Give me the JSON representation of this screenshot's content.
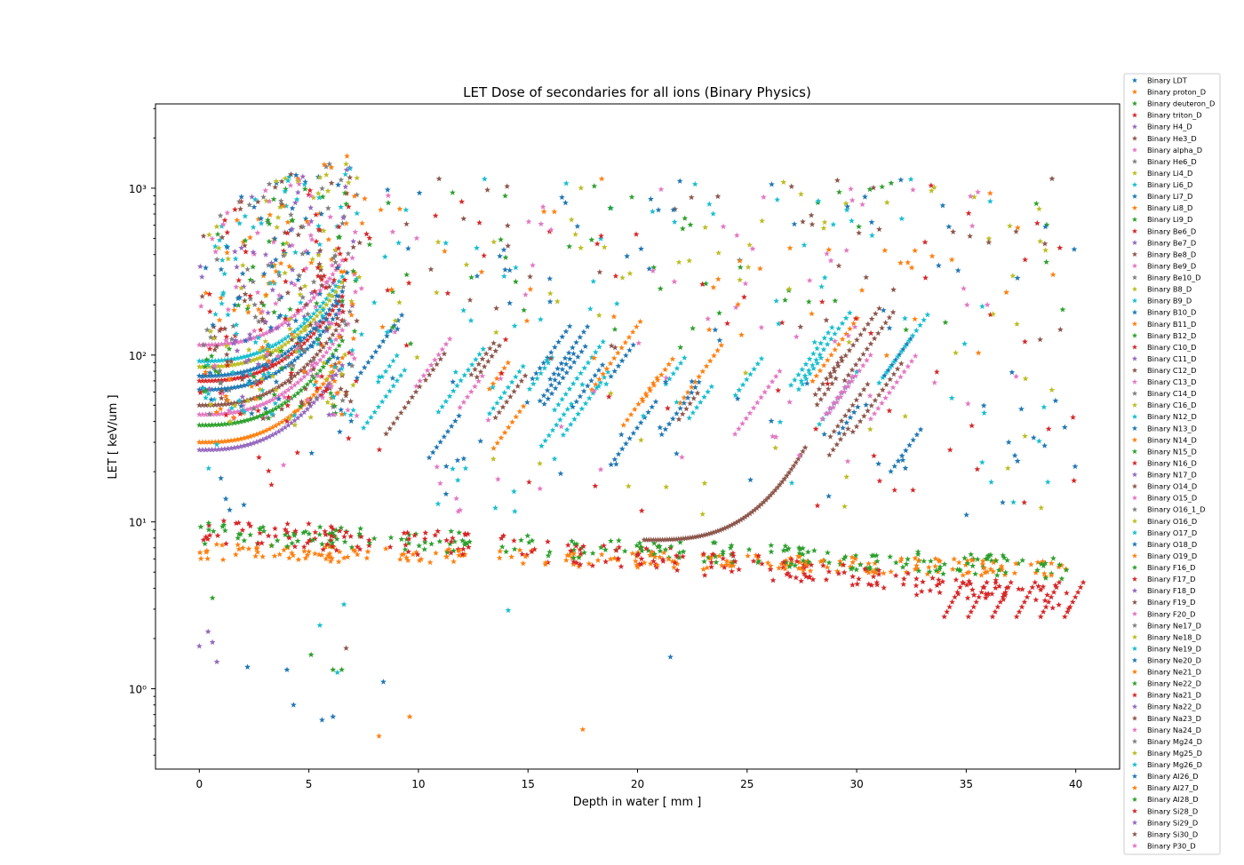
{
  "chart_data": {
    "type": "scatter",
    "marker": "star",
    "title": "LET Dose of secondaries for all ions (Binary Physics)",
    "xlabel": "Depth in water [ mm ]",
    "ylabel": "LET [ keV/um ]",
    "xlim": [
      -2,
      42
    ],
    "ylim": [
      0.33,
      3200
    ],
    "yscale": "log",
    "xticks": [
      0,
      5,
      10,
      15,
      20,
      25,
      30,
      35,
      40
    ],
    "xtick_labels": [
      "0",
      "5",
      "10",
      "15",
      "20",
      "25",
      "30",
      "35",
      "40"
    ],
    "yticks": [
      1,
      10,
      100,
      1000
    ],
    "ytick_labels": [
      "10⁰",
      "10¹",
      "10²",
      "10³"
    ],
    "grid": false,
    "legend_position": "outside-right",
    "palette": [
      "#1f77b4",
      "#ff7f0e",
      "#2ca02c",
      "#d62728",
      "#9467bd",
      "#8c564b",
      "#e377c2",
      "#7f7f7f",
      "#bcbd22",
      "#17becf"
    ],
    "legend": [
      "Binary LDT",
      "Binary proton_D",
      "Binary deuteron_D",
      "Binary triton_D",
      "Binary H4_D",
      "Binary He3_D",
      "Binary alpha_D",
      "Binary He6_D",
      "Binary Li4_D",
      "Binary Li6_D",
      "Binary Li7_D",
      "Binary Li8_D",
      "Binary Li9_D",
      "Binary Be6_D",
      "Binary Be7_D",
      "Binary Be8_D",
      "Binary Be9_D",
      "Binary Be10_D",
      "Binary B8_D",
      "Binary B9_D",
      "Binary B10_D",
      "Binary B11_D",
      "Binary B12_D",
      "Binary C10_D",
      "Binary C11_D",
      "Binary C12_D",
      "Binary C13_D",
      "Binary C14_D",
      "Binary C16_D",
      "Binary N12_D",
      "Binary N13_D",
      "Binary N14_D",
      "Binary N15_D",
      "Binary N16_D",
      "Binary N17_D",
      "Binary O14_D",
      "Binary O15_D",
      "Binary O16_1_D",
      "Binary O16_D",
      "Binary O17_D",
      "Binary O18_D",
      "Binary O19_D",
      "Binary F16_D",
      "Binary F17_D",
      "Binary F18_D",
      "Binary F19_D",
      "Binary F20_D",
      "Binary Ne17_D",
      "Binary Ne18_D",
      "Binary Ne19_D",
      "Binary Ne20_D",
      "Binary Ne21_D",
      "Binary Ne22_D",
      "Binary Na21_D",
      "Binary Na22_D",
      "Binary Na23_D",
      "Binary Na24_D",
      "Binary Mg24_D",
      "Binary Mg25_D",
      "Binary Mg26_D",
      "Binary Al26_D",
      "Binary Al27_D",
      "Binary Al28_D",
      "Binary Si28_D",
      "Binary Si29_D",
      "Binary Si30_D",
      "Binary P30_D"
    ],
    "series_summary": {
      "proton_D": {
        "x": [
          0,
          5,
          10,
          15,
          20,
          25,
          30,
          35,
          40
        ],
        "y": [
          6.6,
          6.9,
          6.3,
          5.7,
          5.2,
          5.0,
          4.8,
          4.5,
          3.0
        ]
      },
      "deuteron_D": {
        "x": [
          0,
          5,
          10,
          15,
          20,
          25,
          30,
          35,
          40
        ],
        "y": [
          8.3,
          8.5,
          7.5,
          6.9,
          6.4,
          6.0,
          5.6,
          5.0,
          4.5
        ]
      },
      "triton_D": {
        "x": [
          0,
          5,
          10,
          15,
          20,
          25,
          30,
          35,
          40
        ],
        "y": [
          8.8,
          9.3,
          7.8,
          6.2,
          5.0,
          4.5,
          4.0,
          3.3,
          2.6
        ]
      },
      "He3_D": {
        "x": [
          20.3,
          22,
          24,
          26,
          27,
          27.7
        ],
        "y": [
          7.8,
          8.7,
          10.5,
          14,
          18,
          28
        ]
      },
      "LDT": {
        "x": [
          0,
          2,
          4,
          6,
          6.5
        ],
        "y": [
          75,
          90,
          110,
          170,
          300
        ]
      },
      "alpha_D": {
        "x": [
          0,
          2,
          4,
          6,
          6.5
        ],
        "y": [
          44,
          52,
          64,
          85,
          130
        ]
      }
    }
  }
}
